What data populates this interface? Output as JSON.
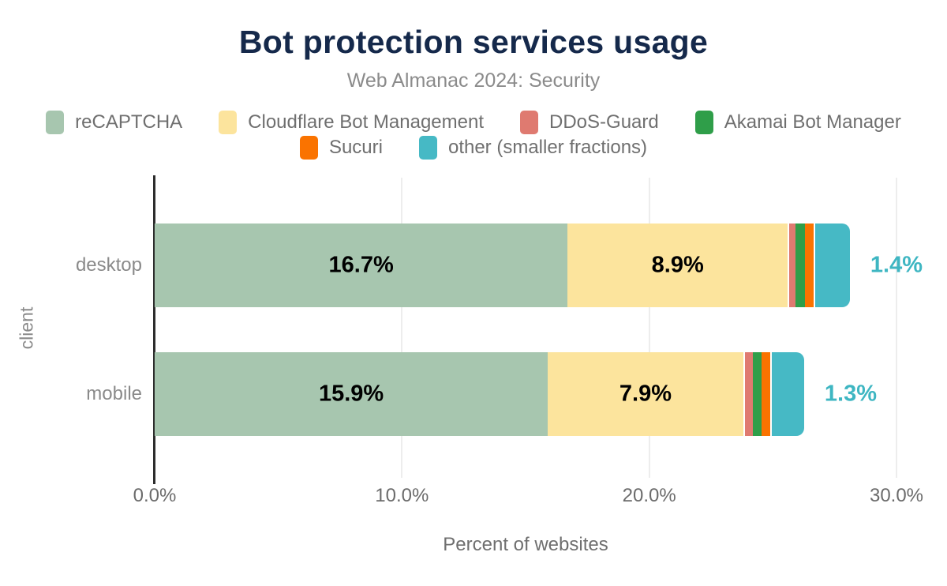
{
  "chart_data": {
    "type": "bar",
    "orientation": "horizontal",
    "stacked": true,
    "title": "Bot protection services usage",
    "subtitle": "Web Almanac 2024: Security",
    "xlabel": "Percent of websites",
    "ylabel": "client",
    "categories": [
      "desktop",
      "mobile"
    ],
    "series": [
      {
        "name": "reCAPTCHA",
        "color": "#a7c6af",
        "values": [
          16.7,
          15.9
        ],
        "labels": [
          "16.7%",
          "15.9%"
        ],
        "label_placement": "inside"
      },
      {
        "name": "Cloudflare Bot Management",
        "color": "#fce49d",
        "values": [
          8.9,
          7.9
        ],
        "labels": [
          "8.9%",
          "7.9%"
        ],
        "label_placement": "inside"
      },
      {
        "name": "DDoS-Guard",
        "color": "#df7a70",
        "values": [
          0.3,
          0.4
        ],
        "labels": [
          "",
          ""
        ],
        "label_placement": "none"
      },
      {
        "name": "Akamai Bot Manager",
        "color": "#2f9e49",
        "values": [
          0.4,
          0.35
        ],
        "labels": [
          "",
          ""
        ],
        "label_placement": "none"
      },
      {
        "name": "Sucuri",
        "color": "#fa7300",
        "values": [
          0.35,
          0.35
        ],
        "labels": [
          "",
          ""
        ],
        "label_placement": "none"
      },
      {
        "name": "other (smaller fractions)",
        "color": "#46b9c5",
        "values": [
          1.4,
          1.3
        ],
        "labels": [
          "1.4%",
          "1.3%"
        ],
        "label_placement": "outside",
        "outside_label_color": "#3eb6c2"
      }
    ],
    "legend_rows": [
      [
        0,
        1,
        2,
        3
      ],
      [
        4,
        5
      ]
    ],
    "x_ticks": [
      {
        "value": 0,
        "label": "0.0%"
      },
      {
        "value": 10,
        "label": "10.0%"
      },
      {
        "value": 20,
        "label": "20.0%"
      },
      {
        "value": 30,
        "label": "30.0%"
      }
    ],
    "xlim": [
      0,
      31
    ],
    "grid": "vertical",
    "inside_label_color": "#000000",
    "title_color": "#15294b",
    "subtitle_color": "#8b8b8b"
  }
}
